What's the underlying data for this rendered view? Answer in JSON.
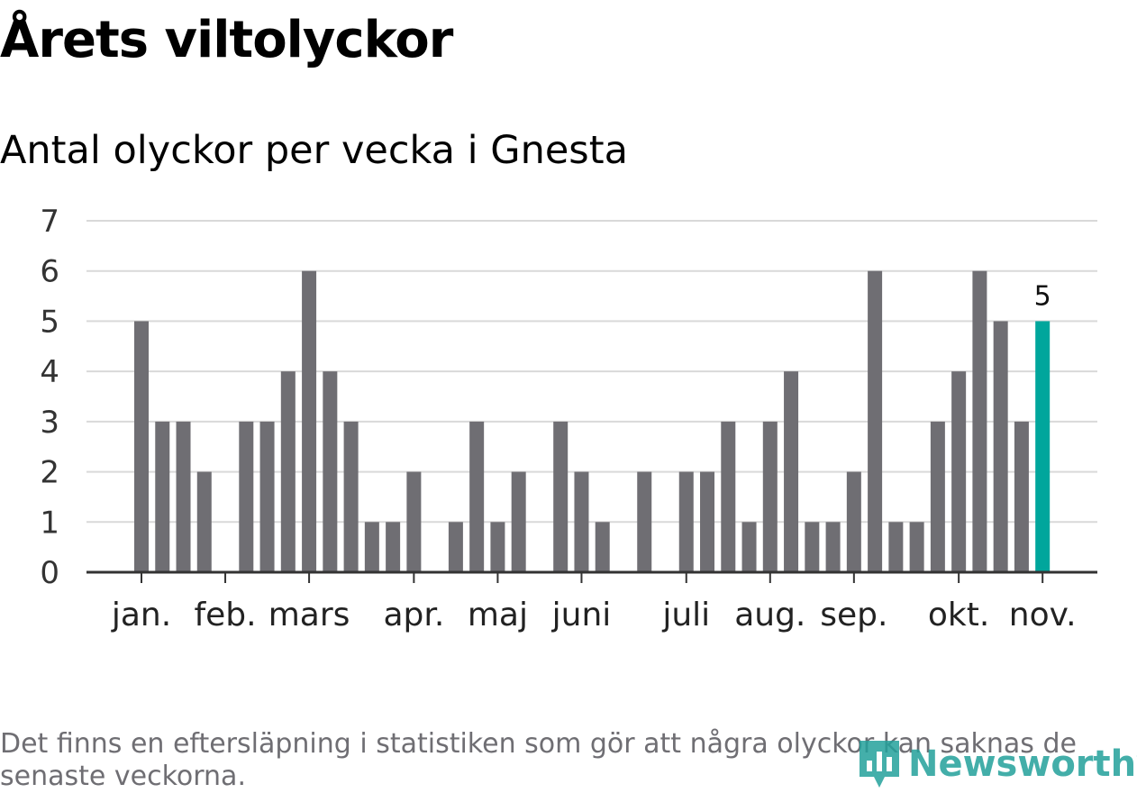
{
  "title": "Årets viltolyckor",
  "subtitle": "Antal olyckor per vecka i Gnesta",
  "footnote": "Det finns en eftersläpning i statistiken som gör att några olyckor kan saknas de senaste veckorna.",
  "logo": {
    "text": "Newsworthy",
    "icon": "bar-chart-pin-icon"
  },
  "colors": {
    "bar": "#6f6e73",
    "highlight": "#00a69c",
    "grid": "#d9d9d9",
    "axis": "#333333"
  },
  "chart_data": {
    "type": "bar",
    "title": "Antal olyckor per vecka i Gnesta",
    "xlabel": "",
    "ylabel": "",
    "ylim": [
      0,
      7
    ],
    "yticks": [
      0,
      1,
      2,
      3,
      4,
      5,
      6,
      7
    ],
    "values": [
      5,
      3,
      3,
      2,
      0,
      3,
      3,
      4,
      6,
      4,
      3,
      1,
      1,
      2,
      0,
      1,
      3,
      1,
      2,
      0,
      3,
      2,
      1,
      0,
      2,
      0,
      2,
      2,
      3,
      1,
      3,
      4,
      1,
      1,
      2,
      6,
      1,
      1,
      3,
      4,
      6,
      5,
      3,
      5
    ],
    "month_labels": [
      {
        "label": "jan.",
        "week": 1
      },
      {
        "label": "feb.",
        "week": 5
      },
      {
        "label": "mars",
        "week": 9
      },
      {
        "label": "apr.",
        "week": 14
      },
      {
        "label": "maj",
        "week": 18
      },
      {
        "label": "juni",
        "week": 22
      },
      {
        "label": "juli",
        "week": 27
      },
      {
        "label": "aug.",
        "week": 31
      },
      {
        "label": "sep.",
        "week": 35
      },
      {
        "label": "okt.",
        "week": 40
      },
      {
        "label": "nov.",
        "week": 44
      }
    ],
    "highlight_last": true,
    "last_value_label": "5"
  }
}
